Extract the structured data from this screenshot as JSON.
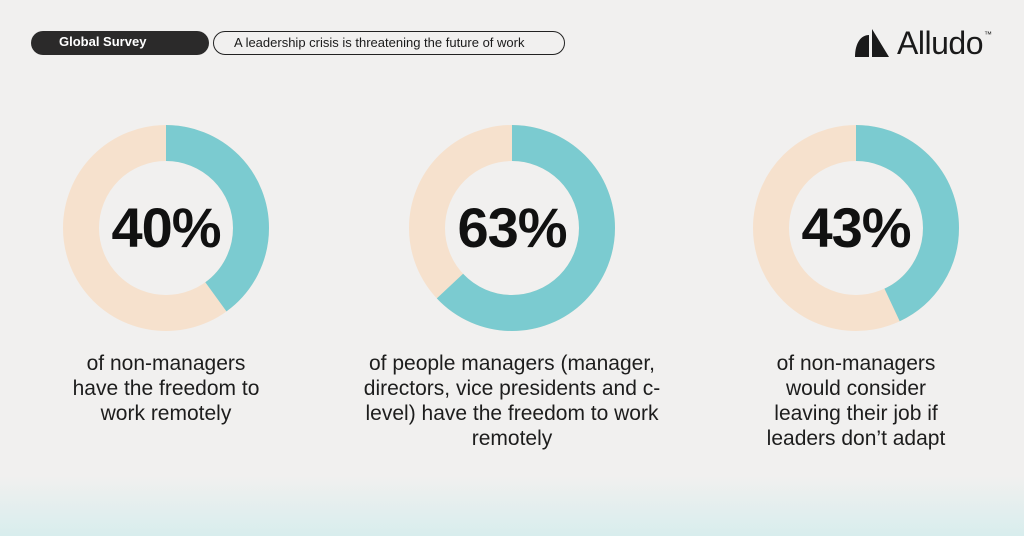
{
  "header": {
    "tag_label": "Global Survey",
    "headline": "A leadership crisis is threatening the future of work"
  },
  "brand": {
    "name": "Alludo",
    "trademark": "™",
    "logo_icon": "alludo-logo-mark-icon"
  },
  "colors": {
    "value_fill": "#7bcbd0",
    "remainder_fill": "#f6e1cd",
    "background": "#f1f0ef",
    "pill_dark": "#2b2a2a"
  },
  "chart_data": [
    {
      "type": "pie",
      "variant": "donut",
      "value": 40,
      "label": "40%",
      "description": "of non-managers have the freedom to work remotely"
    },
    {
      "type": "pie",
      "variant": "donut",
      "value": 63,
      "label": "63%",
      "description": "of people managers (manager, directors, vice presidents and c-level) have the freedom to work remotely"
    },
    {
      "type": "pie",
      "variant": "donut",
      "value": 43,
      "label": "43%",
      "description": "of non-managers would consider leaving their job if leaders don’t adapt"
    }
  ]
}
